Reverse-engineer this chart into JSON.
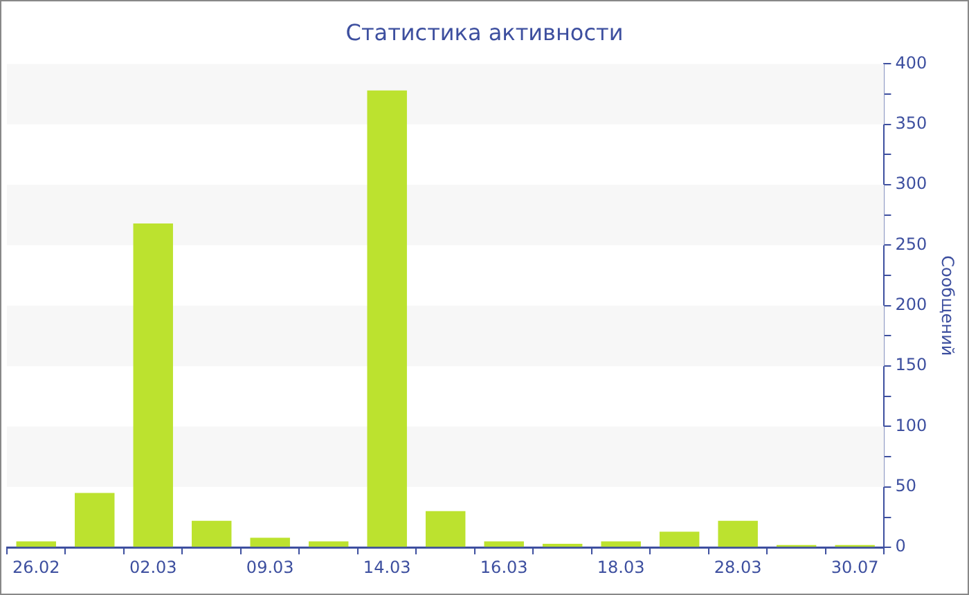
{
  "chart_data": {
    "type": "bar",
    "title": "Статистика активности",
    "ylabel": "Сообщений",
    "categories": [
      "26.02",
      null,
      "02.03",
      null,
      "09.03",
      null,
      "14.03",
      null,
      "16.03",
      null,
      "18.03",
      null,
      "28.03",
      null,
      "30.07"
    ],
    "values": [
      5,
      45,
      268,
      22,
      8,
      5,
      378,
      30,
      5,
      3,
      5,
      13,
      22,
      2,
      2
    ],
    "color": "#bce22f",
    "ylim": [
      0,
      400
    ],
    "yticks": [
      0,
      {
        "value": 25,
        "label": null
      },
      50,
      {
        "value": 75,
        "label": null
      },
      100,
      {
        "value": 125,
        "label": null
      },
      150,
      {
        "value": 175,
        "label": null
      },
      200,
      {
        "value": 225,
        "label": null
      },
      250,
      {
        "value": 275,
        "label": null
      },
      300,
      {
        "value": 325,
        "label": null
      },
      350,
      {
        "value": 375,
        "label": null
      },
      400
    ],
    "legend": false
  }
}
